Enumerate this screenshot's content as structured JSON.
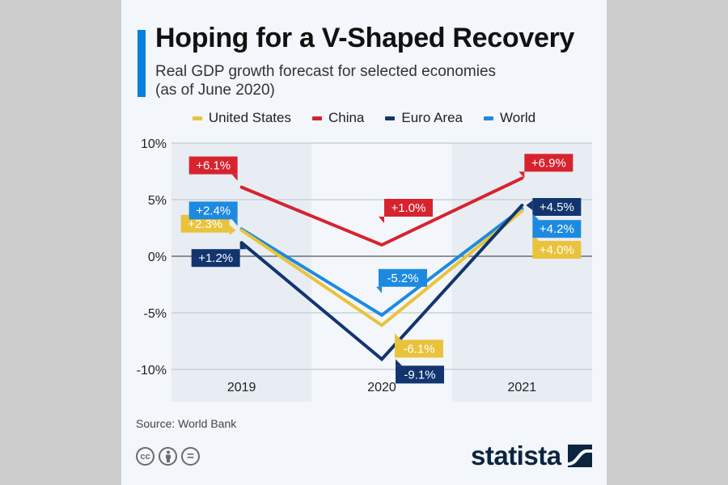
{
  "title": "Hoping for a V-Shaped Recovery",
  "subtitle_line1": "Real GDP growth forecast for selected economies",
  "subtitle_line2": "(as of June 2020)",
  "source": "Source: World Bank",
  "logo_text": "statista",
  "colors": {
    "accent": "#0a7fe0",
    "united_states": "#e9c33b",
    "china": "#d7232e",
    "euro_area": "#12356f",
    "world": "#1d8ae0"
  },
  "chart_data": {
    "type": "line",
    "title": "Hoping for a V-Shaped Recovery",
    "subtitle": "Real GDP growth forecast for selected economies (as of June 2020)",
    "xlabel": "",
    "ylabel": "",
    "categories": [
      "2019",
      "2020",
      "2021"
    ],
    "ylim": [
      -10,
      10
    ],
    "yticks": [
      10,
      5,
      0,
      -5,
      -10
    ],
    "ytick_labels": [
      "10%",
      "5%",
      "0%",
      "-5%",
      "-10%"
    ],
    "grid": true,
    "legend_position": "top-center",
    "series": [
      {
        "name": "United States",
        "key": "united_states",
        "values": [
          2.3,
          -6.1,
          4.0
        ],
        "labels": [
          "+2.3%",
          "-6.1%",
          "+4.0%"
        ]
      },
      {
        "name": "China",
        "key": "china",
        "values": [
          6.1,
          1.0,
          6.9
        ],
        "labels": [
          "+6.1%",
          "+1.0%",
          "+6.9%"
        ]
      },
      {
        "name": "Euro Area",
        "key": "euro_area",
        "values": [
          1.2,
          -9.1,
          4.5
        ],
        "labels": [
          "+1.2%",
          "-9.1%",
          "+4.5%"
        ]
      },
      {
        "name": "World",
        "key": "world",
        "values": [
          2.4,
          -5.2,
          4.2
        ],
        "labels": [
          "+2.4%",
          "-5.2%",
          "+4.2%"
        ]
      }
    ]
  },
  "icons": {
    "cc": "cc-icon",
    "by": "attribution-person-icon",
    "nd": "no-derivatives-equals-icon",
    "logo": "statista-logo-icon"
  },
  "cc_label": "cc",
  "nd_label": "="
}
